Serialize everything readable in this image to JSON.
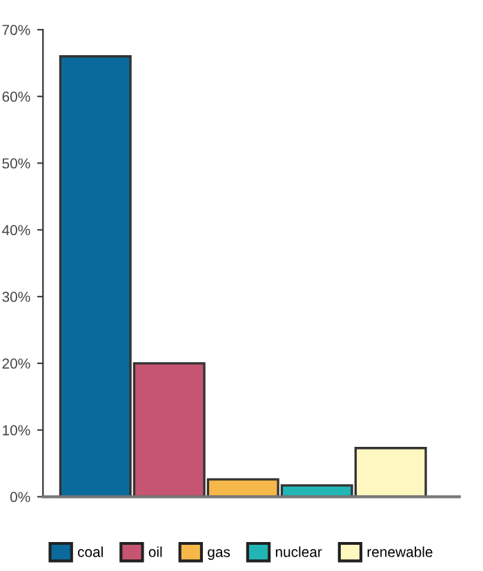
{
  "chart_data": {
    "type": "bar",
    "categories": [
      null,
      null,
      null,
      null,
      null
    ],
    "series": [
      {
        "name": "coal",
        "color": "#0b6a9c",
        "values": [
          66,
          null,
          null,
          null,
          null
        ]
      },
      {
        "name": "oil",
        "color": "#c65572",
        "values": [
          null,
          20,
          null,
          null,
          null
        ]
      },
      {
        "name": "gas",
        "color": "#f7b84a",
        "values": [
          null,
          null,
          2.6,
          null,
          null
        ]
      },
      {
        "name": "nuclear",
        "color": "#22b5b5",
        "values": [
          null,
          null,
          null,
          1.7,
          null
        ]
      },
      {
        "name": "renewable",
        "color": "#fff7c0",
        "values": [
          null,
          null,
          null,
          null,
          7.3
        ]
      }
    ],
    "ylim": [
      0,
      70
    ],
    "yticks": [
      {
        "value": 0,
        "label": "0%"
      },
      {
        "value": 10,
        "label": "10%"
      },
      {
        "value": 20,
        "label": "20%"
      },
      {
        "value": 30,
        "label": "30%"
      },
      {
        "value": 40,
        "label": "40%"
      },
      {
        "value": 50,
        "label": "50%"
      },
      {
        "value": 60,
        "label": "60%"
      },
      {
        "value": 70,
        "label": "70%"
      }
    ],
    "tick_labels": "y",
    "grid": false,
    "legend": "bottom"
  }
}
